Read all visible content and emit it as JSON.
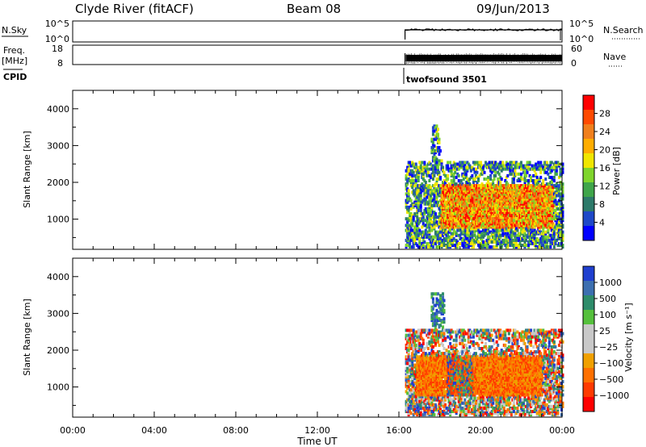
{
  "header": {
    "station": "Clyde River (fitACF)",
    "beam": "Beam 08",
    "date": "09/Jun/2013"
  },
  "strips": {
    "nsky_label": "N.Sky",
    "nsky_ticks": [
      "10^5",
      "10^0"
    ],
    "nsearch_label": "N.Search",
    "nsearch_ticks": [
      "10^5",
      "10^0"
    ],
    "freq_label_line1": "Freq.",
    "freq_label_line2": "[MHz]",
    "freq_ticks": [
      "18",
      "8"
    ],
    "nave_label": "Nave",
    "nave_ticks": [
      "60",
      "0"
    ],
    "cpid_label": "CPID",
    "cpid_value": "twofsound 3501"
  },
  "chart_data": [
    {
      "type": "heatmap",
      "panel": "power",
      "ylabel": "Slant Range [km]",
      "xlabel": "",
      "ylim": [
        180,
        4500
      ],
      "yticks": [
        1000,
        2000,
        3000,
        4000
      ],
      "xlim_hours": [
        0,
        24
      ],
      "data_start_hour": 16.3,
      "colorbar": {
        "label": "Power [dB]",
        "ticks": [
          "28",
          "24",
          "20",
          "16",
          "12",
          "8",
          "4"
        ],
        "colors": [
          "#ff0000",
          "#ff4a00",
          "#f07f1c",
          "#ffad00",
          "#f0e600",
          "#7fd52c",
          "#3fa54a",
          "#2d7a6a",
          "#1e48c8",
          "#0000ff"
        ]
      },
      "echo_regions": [
        {
          "hours": [
            16.3,
            24
          ],
          "range_km": [
            200,
            2500
          ],
          "level": "low-mid"
        },
        {
          "hours": [
            18.0,
            23.5
          ],
          "range_km": [
            700,
            1900
          ],
          "level": "high"
        },
        {
          "hours": [
            17.5,
            18.2
          ],
          "range_km": [
            2300,
            3500
          ],
          "level": "low"
        }
      ]
    },
    {
      "type": "heatmap",
      "panel": "velocity",
      "ylabel": "Slant Range [km]",
      "xlabel": "Time UT",
      "ylim": [
        180,
        4500
      ],
      "yticks": [
        1000,
        2000,
        3000,
        4000
      ],
      "xlim_hours": [
        0,
        24
      ],
      "data_start_hour": 16.3,
      "xticks": [
        "00:00",
        "04:00",
        "08:00",
        "12:00",
        "16:00",
        "20:00",
        "00:00"
      ],
      "colorbar": {
        "label": "Velocity [m s⁻¹]",
        "ticks": [
          "1000",
          "500",
          "100",
          "25",
          "−25",
          "−100",
          "−500",
          "−1000"
        ],
        "colors": [
          "#1f3fcf",
          "#3c6fb0",
          "#2e8c6a",
          "#55c03c",
          "#c8c8c8",
          "#c8c8c8",
          "#f0a000",
          "#ff7000",
          "#ff3a00",
          "#ff0000"
        ]
      },
      "echo_regions": [
        {
          "hours": [
            16.3,
            24
          ],
          "range_km": [
            200,
            2500
          ],
          "level": "mixed"
        },
        {
          "hours": [
            16.8,
            23.0
          ],
          "range_km": [
            700,
            1800
          ],
          "level": "negative"
        },
        {
          "hours": [
            17.5,
            18.2
          ],
          "range_km": [
            2300,
            3500
          ],
          "level": "positive"
        }
      ]
    }
  ]
}
